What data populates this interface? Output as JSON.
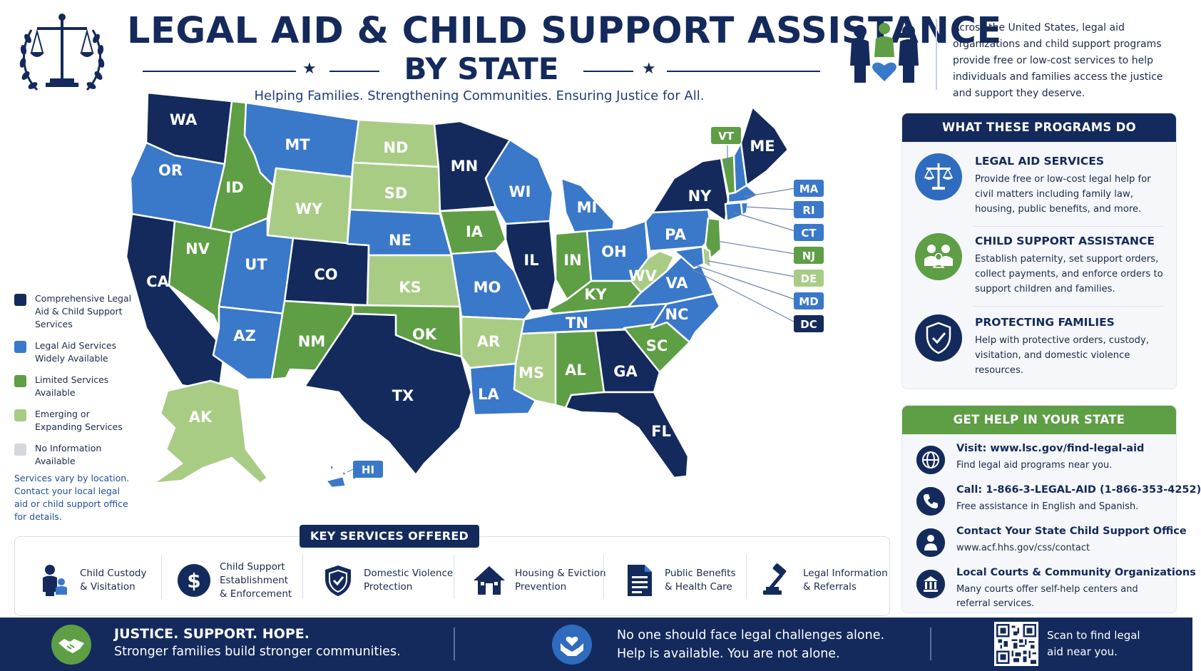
{
  "header": {
    "title_line1": "LEGAL AID & CHILD SUPPORT ASSISTANCE",
    "title_line2": "BY STATE",
    "tagline": "Helping Families. Strengthening Communities. Ensuring Justice for All.",
    "intro": "Across the United States, legal aid organizations and child support programs provide free or low-cost services to help individuals and families access the justice and support they deserve."
  },
  "colors": {
    "comprehensive": "#142a5c",
    "widely_available": "#3a78c9",
    "limited": "#5e9e45",
    "emerging": "#a9cc85",
    "no_info": "#d4d7dc"
  },
  "legend": {
    "items": [
      {
        "label": "Comprehensive Legal Aid & Child Support Services",
        "category": "comprehensive"
      },
      {
        "label": "Legal Aid Services Widely Available",
        "category": "widely_available"
      },
      {
        "label": "Limited Services Available",
        "category": "limited"
      },
      {
        "label": "Emerging or Expanding Services",
        "category": "emerging"
      },
      {
        "label": "No Information Available",
        "category": "no_info"
      }
    ],
    "note": "Services vary by location. Contact your local legal aid or child support office for details."
  },
  "states": {
    "WA": "comprehensive",
    "OR": "widely_available",
    "CA": "comprehensive",
    "NV": "limited",
    "ID": "limited",
    "MT": "widely_available",
    "WY": "emerging",
    "UT": "widely_available",
    "AZ": "widely_available",
    "CO": "comprehensive",
    "NM": "limited",
    "ND": "emerging",
    "SD": "emerging",
    "NE": "widely_available",
    "KS": "emerging",
    "OK": "limited",
    "TX": "comprehensive",
    "MN": "comprehensive",
    "IA": "limited",
    "MO": "widely_available",
    "AR": "emerging",
    "LA": "widely_available",
    "WI": "widely_available",
    "IL": "comprehensive",
    "MI": "widely_available",
    "IN": "limited",
    "OH": "widely_available",
    "KY": "limited",
    "TN": "widely_available",
    "MS": "emerging",
    "AL": "limited",
    "GA": "comprehensive",
    "FL": "comprehensive",
    "SC": "limited",
    "NC": "widely_available",
    "VA": "widely_available",
    "WV": "emerging",
    "PA": "widely_available",
    "NY": "comprehensive",
    "ME": "comprehensive",
    "VT": "limited",
    "NH": "widely_available",
    "AK": "emerging",
    "HI": "widely_available",
    "MA": "widely_available",
    "RI": "widely_available",
    "CT": "widely_available",
    "NJ": "limited",
    "DE": "emerging",
    "MD": "widely_available",
    "DC": "comprehensive"
  },
  "callouts": [
    "VT",
    "MA",
    "RI",
    "CT",
    "NJ",
    "DE",
    "MD",
    "DC",
    "HI"
  ],
  "key_services": {
    "title": "KEY SERVICES OFFERED",
    "items": [
      {
        "label": "Child Custody\n& Visitation",
        "icon": "family-icon"
      },
      {
        "label": "Child Support\nEstablishment\n& Enforcement",
        "icon": "dollar-icon"
      },
      {
        "label": "Domestic Violence\nProtection",
        "icon": "shield-icon"
      },
      {
        "label": "Housing & Eviction\nPrevention",
        "icon": "house-icon"
      },
      {
        "label": "Public Benefits\n& Health Care",
        "icon": "document-icon"
      },
      {
        "label": "Legal Information\n& Referrals",
        "icon": "gavel-icon"
      }
    ]
  },
  "programs": {
    "title": "WHAT THESE PROGRAMS DO",
    "items": [
      {
        "title": "LEGAL AID SERVICES",
        "desc": "Provide free or low-cost legal help for civil matters including family law, housing, public benefits, and more.",
        "icon": "scales-icon"
      },
      {
        "title": "CHILD SUPPORT ASSISTANCE",
        "desc": "Establish paternity, set support orders, collect payments, and enforce orders to support children and families.",
        "icon": "family-icon"
      },
      {
        "title": "PROTECTING FAMILIES",
        "desc": "Help with protective orders, custody, visitation, and domestic violence resources.",
        "icon": "shield-icon"
      }
    ]
  },
  "get_help": {
    "title": "GET HELP IN YOUR STATE",
    "items": [
      {
        "title": "Visit: www.lsc.gov/find-legal-aid",
        "desc": "Find legal aid programs near you.",
        "icon": "globe-icon"
      },
      {
        "title": "Call: 1-866-3-LEGAL-AID (1-866-353-4252)",
        "desc": "Free assistance in English and Spanish.",
        "icon": "phone-icon"
      },
      {
        "title": "Contact Your State Child Support Office",
        "desc": "www.acf.hhs.gov/css/contact",
        "icon": "person-icon"
      },
      {
        "title": "Local Courts & Community Organizations",
        "desc": "Many courts offer self-help centers and referral services.",
        "icon": "courthouse-icon"
      }
    ]
  },
  "footer": {
    "headline": "JUSTICE. SUPPORT. HOPE.",
    "subline": "Stronger families build stronger communities.",
    "message_line1": "No one should face legal challenges alone.",
    "message_line2": "Help is available. You are not alone.",
    "scan": "Scan to find legal aid near you."
  }
}
